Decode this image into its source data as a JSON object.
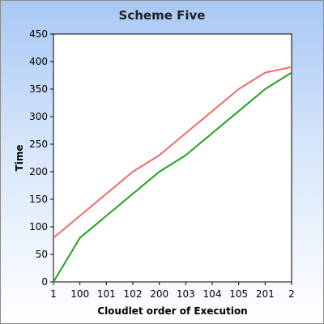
{
  "chart_data": {
    "type": "line",
    "title": "Scheme Five",
    "xlabel": "Cloudlet order of Execution",
    "ylabel": "Time",
    "categories": [
      "1",
      "100",
      "101",
      "102",
      "200",
      "103",
      "104",
      "105",
      "201",
      "2"
    ],
    "ylim": [
      0,
      450
    ],
    "yticks": [
      0,
      50,
      100,
      150,
      200,
      250,
      300,
      350,
      400,
      450
    ],
    "grid": false,
    "legend": "none",
    "series": [
      {
        "color": "#f06a6a",
        "values": [
          80,
          120,
          160,
          200,
          230,
          270,
          310,
          350,
          380,
          390
        ]
      },
      {
        "color": "#22a022",
        "values": [
          0,
          80,
          120,
          160,
          200,
          230,
          270,
          310,
          350,
          380
        ]
      }
    ]
  }
}
